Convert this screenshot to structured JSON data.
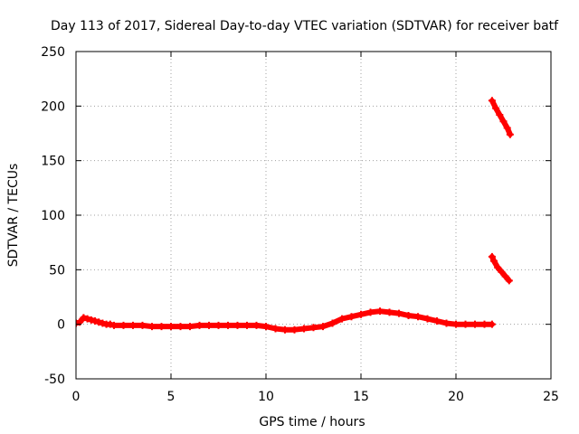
{
  "chart_data": {
    "type": "scatter",
    "title": "Day 113 of 2017, Sidereal Day-to-day VTEC variation (SDTVAR) for receiver batf",
    "xlabel": "GPS time / hours",
    "ylabel": "SDTVAR / TECUs",
    "xlim": [
      0,
      25
    ],
    "ylim": [
      -50,
      250
    ],
    "xticks": [
      0,
      5,
      10,
      15,
      20,
      25
    ],
    "yticks": [
      -50,
      0,
      50,
      100,
      150,
      200,
      250
    ],
    "xtick_labels": [
      "0",
      "5",
      "10",
      "15",
      "20",
      "25"
    ],
    "ytick_labels": [
      "-50",
      "0",
      "50",
      "100",
      "150",
      "200",
      "250"
    ],
    "grid": true,
    "series_color": "#ff0000",
    "series": [
      {
        "x": [
          0.0,
          0.2,
          0.4,
          0.6,
          0.8,
          1.0,
          1.2,
          1.4,
          1.6,
          1.8,
          2.0,
          2.5,
          3.0,
          3.5,
          4.0,
          4.5,
          5.0,
          5.5,
          6.0,
          6.5,
          7.0,
          7.5,
          8.0,
          8.5,
          9.0,
          9.5,
          10.0,
          10.5,
          11.0,
          11.5,
          12.0,
          12.5,
          13.0,
          13.5,
          14.0,
          14.5,
          15.0,
          15.5,
          16.0,
          16.5,
          17.0,
          17.5,
          18.0,
          18.5,
          19.0,
          19.5,
          20.0,
          20.5,
          21.0,
          21.5,
          21.9
        ],
        "y": [
          1,
          2,
          6,
          5,
          4,
          3,
          2,
          1,
          0,
          0,
          -1,
          -1,
          -1,
          -1,
          -2,
          -2,
          -2,
          -2,
          -2,
          -1,
          -1,
          -1,
          -1,
          -1,
          -1,
          -1,
          -2,
          -4,
          -5,
          -5,
          -4,
          -3,
          -2,
          1,
          5,
          7,
          9,
          11,
          12,
          11,
          10,
          8,
          7,
          5,
          3,
          1,
          0,
          0,
          0,
          0,
          0
        ]
      },
      {
        "x": [
          21.9,
          22.1,
          22.3,
          22.5,
          22.7,
          22.85
        ],
        "y": [
          205,
          198,
          192,
          186,
          180,
          174
        ]
      },
      {
        "x": [
          21.9,
          22.0,
          22.2,
          22.4,
          22.6,
          22.8
        ],
        "y": [
          62,
          58,
          52,
          48,
          44,
          40
        ]
      }
    ]
  }
}
